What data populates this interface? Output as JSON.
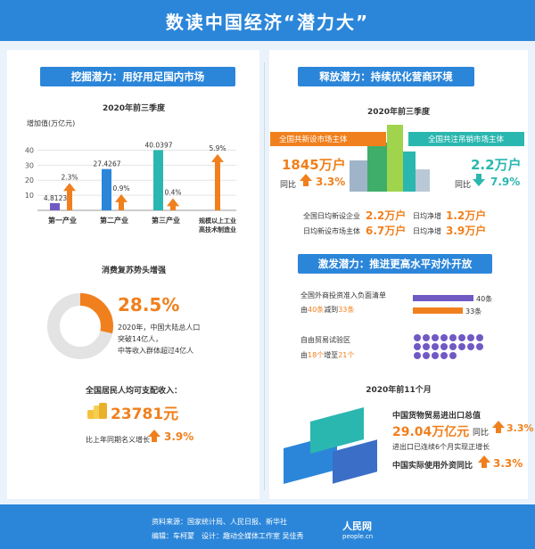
{
  "header": {
    "title": "数读中国经济“潜力大”"
  },
  "left": {
    "tag1": "挖掘潜力：用好用足国内市场",
    "chart_subtitle": "2020年前三季度",
    "consumption_title": "消费复苏势头增强",
    "consumption_pct": "28.5%",
    "consumption_desc": [
      "2020年，中国大陆总人口",
      "突破14亿人，",
      "中等收入群体超过4亿人"
    ],
    "income_title": "全国居民人均可支配收入：",
    "income_value": "23781元",
    "income_growth_label": "比上年同期名义增长",
    "income_growth": "3.9%"
  },
  "chart_data": {
    "type": "bar",
    "title": "2020年前三季度",
    "ylabel": "增加值(万亿元)",
    "yticks": [
      10,
      20,
      30,
      40
    ],
    "ylim": [
      0,
      45
    ],
    "categories": [
      "第一产业",
      "第二产业",
      "第三产业",
      "规模以上工业高技术制造业"
    ],
    "category_lines": [
      [
        "第一产业"
      ],
      [
        "第二产业"
      ],
      [
        "第三产业"
      ],
      [
        "规模以上工业",
        "高技术制造业"
      ]
    ],
    "series": [
      {
        "values": [
          4.8123,
          27.4267,
          40.0397,
          null
        ],
        "labels": [
          "4.8123",
          "27.4267",
          "40.0397",
          ""
        ]
      },
      {
        "values": [
          2.3,
          0.9,
          0.4,
          5.9
        ],
        "labels": [
          "2.3%",
          "0.9%",
          "0.4%",
          "5.9%"
        ]
      }
    ],
    "colors": [
      "#7159c4",
      "#2b86d9",
      "#2ab7b0",
      "#f0801d"
    ]
  },
  "right": {
    "tag2": "释放潜力：持续优化营商环境",
    "subtitle1": "2020年前三季度",
    "new_market_label": "全国共新设市场主体",
    "new_market_value": "1845万户",
    "yoy": "同比",
    "new_market_growth": "3.3%",
    "cancel_label": "全国共注吊销市场主体",
    "cancel_value": "2.2万户",
    "cancel_growth": "7.9%",
    "daily": [
      {
        "label": "全国日均新设企业",
        "value": "2.2万户"
      },
      {
        "label": "日均净增",
        "value": "1.2万户"
      },
      {
        "label": "日均新设市场主体",
        "value": "6.7万户"
      },
      {
        "label": "日均净增",
        "value": "3.9万户"
      }
    ],
    "tag3": "激发潜力：推进更高水平对外开放",
    "neg_list_title": "全国外商投资准入负面清单",
    "neg_list_sub_pre": "由",
    "neg_list_from": "40条",
    "neg_list_mid": "减到",
    "neg_list_to": "33条",
    "bar_40_label": "40条",
    "bar_33_label": "33条",
    "ftz_title": "自由贸易试验区",
    "ftz_pre": "由",
    "ftz_from": "18个",
    "ftz_mid": "增至",
    "ftz_to": "21个",
    "subtitle2": "2020年前11个月",
    "trade_title": "中国货物贸易进出口总值",
    "trade_value": "29.04万亿元",
    "trade_yoy": "同比",
    "trade_growth": "3.3%",
    "trade_note": "进出口已连续6个月实现正增长",
    "fdi_title": "中国实际使用外资同比",
    "fdi_growth": "3.3%"
  },
  "footer": {
    "source": "资料来源：国家统计局、人民日报、新华社",
    "credits": "编辑：车柯蒙　设计：趣动全媒体工作室 吴佳秀",
    "logo": "人民网",
    "logo_sub": "people.cn"
  }
}
